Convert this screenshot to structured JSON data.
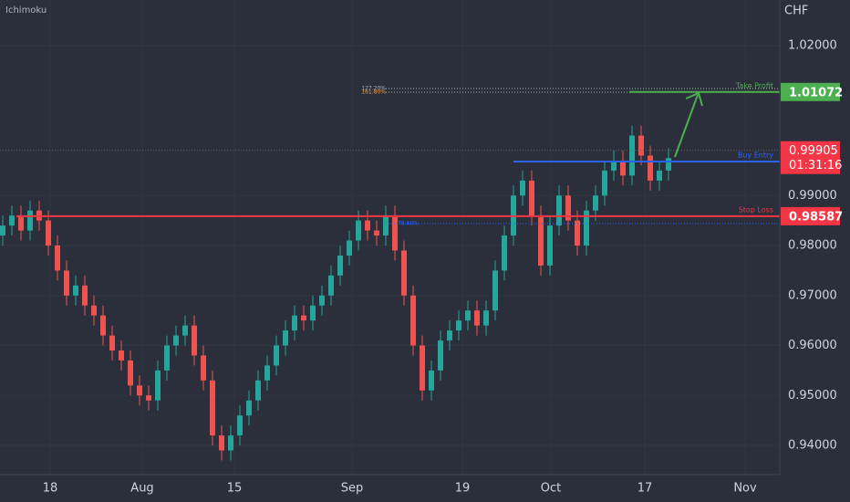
{
  "chart_data": {
    "type": "candlestick",
    "indicator": "Ichimoku",
    "axis_title": "CHF",
    "ylim": [
      0.93416,
      1.02913
    ],
    "yticks": [
      {
        "value": 1.02,
        "label": "1.02000"
      },
      {
        "value": 0.99,
        "label": "0.99000"
      },
      {
        "value": 0.98,
        "label": "0.98000"
      },
      {
        "value": 0.97,
        "label": "0.97000"
      },
      {
        "value": 0.96,
        "label": "0.96000"
      },
      {
        "value": 0.95,
        "label": "0.95000"
      },
      {
        "value": 0.94,
        "label": "0.94000"
      }
    ],
    "xlim": [
      -0.3,
      85.2
    ],
    "xticks": [
      {
        "value": 5.2,
        "label": "18"
      },
      {
        "value": 15.3,
        "label": "Aug"
      },
      {
        "value": 25.4,
        "label": "15"
      },
      {
        "value": 38.3,
        "label": "Sep"
      },
      {
        "value": 50.4,
        "label": "19"
      },
      {
        "value": 60.1,
        "label": "Oct"
      },
      {
        "value": 70.4,
        "label": "17"
      },
      {
        "value": 81.4,
        "label": "Nov"
      }
    ],
    "grid": true,
    "up_color": "#26a69a",
    "down_color": "#ef5350",
    "candles": {
      "open": [
        0.982,
        0.984,
        0.986,
        0.983,
        0.987,
        0.985,
        0.98,
        0.975,
        0.97,
        0.972,
        0.968,
        0.966,
        0.962,
        0.959,
        0.957,
        0.952,
        0.95,
        0.949,
        0.955,
        0.96,
        0.962,
        0.964,
        0.958,
        0.953,
        0.942,
        0.939,
        0.942,
        0.946,
        0.949,
        0.953,
        0.956,
        0.96,
        0.963,
        0.966,
        0.965,
        0.968,
        0.97,
        0.974,
        0.978,
        0.981,
        0.985,
        0.983,
        0.982,
        0.986,
        0.979,
        0.97,
        0.96,
        0.951,
        0.955,
        0.961,
        0.963,
        0.965,
        0.967,
        0.964,
        0.967,
        0.975,
        0.982,
        0.99,
        0.993,
        0.986,
        0.976,
        0.984,
        0.99,
        0.985,
        0.98,
        0.987,
        0.99,
        0.995,
        0.997,
        0.994,
        1.002,
        0.998,
        0.993,
        0.995
      ],
      "high": [
        0.986,
        0.988,
        0.988,
        0.989,
        0.989,
        0.987,
        0.982,
        0.977,
        0.974,
        0.974,
        0.97,
        0.968,
        0.964,
        0.961,
        0.959,
        0.954,
        0.952,
        0.957,
        0.962,
        0.964,
        0.966,
        0.966,
        0.96,
        0.955,
        0.944,
        0.944,
        0.948,
        0.951,
        0.955,
        0.958,
        0.962,
        0.965,
        0.968,
        0.968,
        0.97,
        0.972,
        0.976,
        0.98,
        0.983,
        0.987,
        0.987,
        0.985,
        0.988,
        0.988,
        0.981,
        0.972,
        0.962,
        0.957,
        0.963,
        0.965,
        0.967,
        0.969,
        0.969,
        0.969,
        0.977,
        0.984,
        0.992,
        0.995,
        0.995,
        0.988,
        0.986,
        0.992,
        0.992,
        0.987,
        0.989,
        0.992,
        0.997,
        0.999,
        0.999,
        1.004,
        1.004,
        1.0,
        0.997,
        0.9995
      ],
      "low": [
        0.98,
        0.982,
        0.981,
        0.981,
        0.983,
        0.978,
        0.973,
        0.968,
        0.968,
        0.966,
        0.964,
        0.96,
        0.957,
        0.955,
        0.95,
        0.948,
        0.947,
        0.947,
        0.953,
        0.958,
        0.96,
        0.956,
        0.951,
        0.94,
        0.937,
        0.937,
        0.94,
        0.944,
        0.947,
        0.951,
        0.954,
        0.958,
        0.961,
        0.963,
        0.963,
        0.966,
        0.968,
        0.972,
        0.976,
        0.979,
        0.981,
        0.98,
        0.98,
        0.977,
        0.968,
        0.958,
        0.949,
        0.949,
        0.953,
        0.959,
        0.961,
        0.963,
        0.962,
        0.962,
        0.965,
        0.973,
        0.98,
        0.988,
        0.984,
        0.974,
        0.974,
        0.982,
        0.983,
        0.978,
        0.978,
        0.985,
        0.988,
        0.993,
        0.992,
        0.992,
        0.996,
        0.991,
        0.991,
        0.993
      ],
      "close": [
        0.984,
        0.986,
        0.983,
        0.987,
        0.985,
        0.98,
        0.975,
        0.97,
        0.972,
        0.968,
        0.966,
        0.962,
        0.959,
        0.957,
        0.952,
        0.95,
        0.949,
        0.955,
        0.96,
        0.962,
        0.964,
        0.958,
        0.953,
        0.942,
        0.939,
        0.942,
        0.946,
        0.949,
        0.953,
        0.956,
        0.96,
        0.963,
        0.966,
        0.965,
        0.968,
        0.97,
        0.974,
        0.978,
        0.981,
        0.985,
        0.983,
        0.982,
        0.986,
        0.979,
        0.97,
        0.96,
        0.951,
        0.955,
        0.961,
        0.963,
        0.965,
        0.967,
        0.964,
        0.967,
        0.975,
        0.982,
        0.99,
        0.993,
        0.986,
        0.976,
        0.984,
        0.99,
        0.985,
        0.98,
        0.987,
        0.99,
        0.995,
        0.997,
        0.994,
        1.002,
        0.998,
        0.993,
        0.995,
        0.9975
      ]
    },
    "levels": [
      {
        "name": "Take Profit",
        "value": 1.01072,
        "from": 68.7,
        "color": "#4caf50",
        "price_label": true
      },
      {
        "name": "Buy Entry",
        "value": 0.9968,
        "from": 56,
        "color": "#2962ff",
        "price_label": false
      },
      {
        "name": "Stop Loss",
        "value": 0.98587,
        "from": 1.5,
        "color": "#f23645",
        "price_label": true
      }
    ],
    "fib_levels": [
      {
        "name": "127.20%",
        "value": 1.01142,
        "from": 42
      },
      {
        "name": "161.80%",
        "value": 1.01068,
        "from": 42
      },
      {
        "name": "78.60%",
        "value": 0.98438,
        "from": 42
      }
    ],
    "current_price": {
      "value": 0.99905,
      "countdown": "01:31:16",
      "color": "#f23645"
    }
  }
}
